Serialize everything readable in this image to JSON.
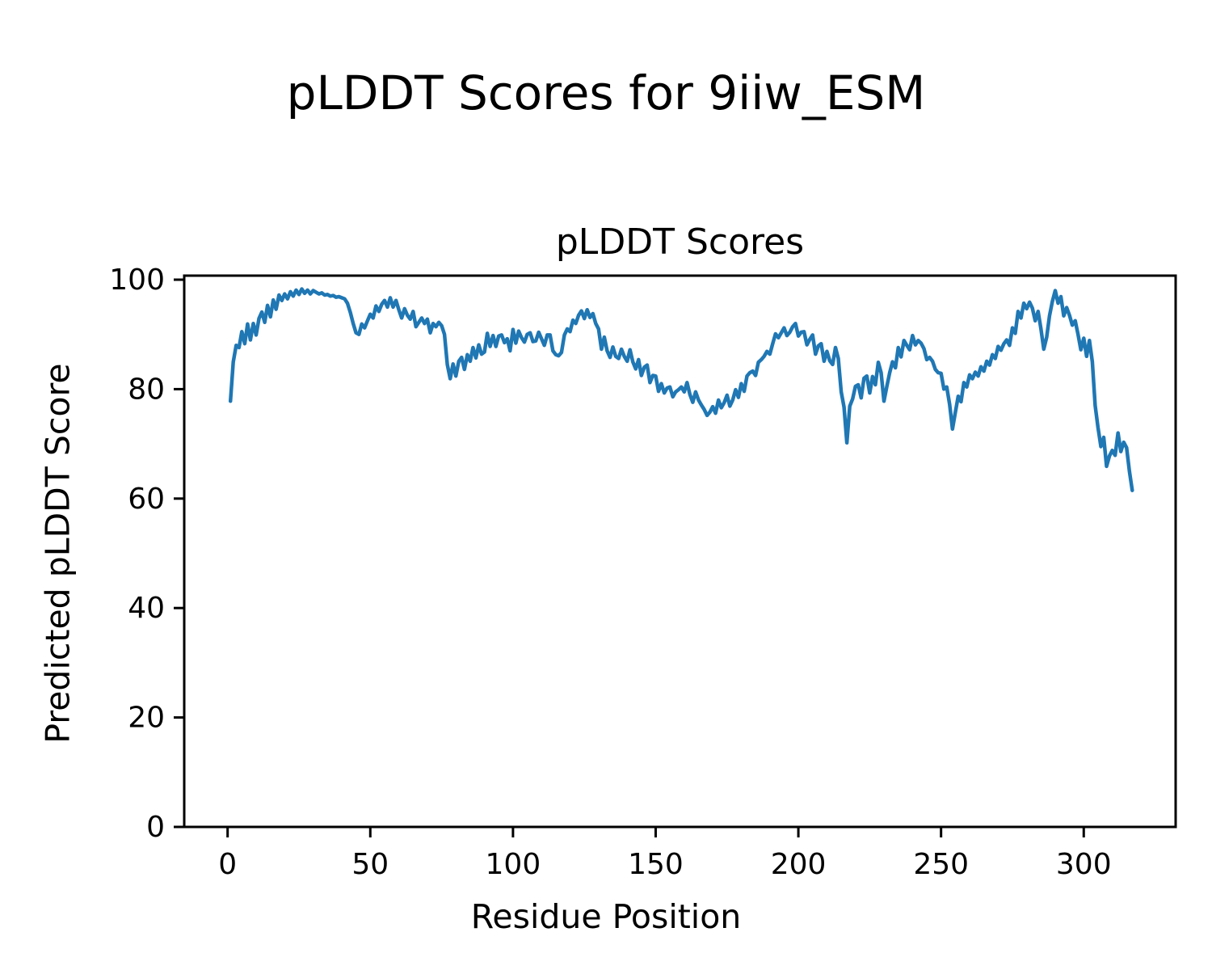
{
  "figure": {
    "suptitle": "pLDDT Scores for 9iiw_ESM",
    "axes_title": "pLDDT Scores",
    "xlabel": "Residue Position",
    "ylabel": "Predicted pLDDT Score"
  },
  "chart_data": {
    "type": "line",
    "title": "pLDDT Scores",
    "suptitle": "pLDDT Scores for 9iiw_ESM",
    "xlabel": "Residue Position",
    "ylabel": "Predicted pLDDT Score",
    "series_name": "pLDDT per residue",
    "line_color": "#1f77b4",
    "axis_color": "#000000",
    "grid": false,
    "legend": false,
    "xlim": [
      -15.2,
      332.2
    ],
    "ylim": [
      0,
      100.74
    ],
    "xticks": [
      0,
      50,
      100,
      150,
      200,
      250,
      300
    ],
    "yticks": [
      0,
      20,
      40,
      60,
      80,
      100
    ],
    "x_start": 1,
    "x_step": 1,
    "y": [
      77.8,
      85.0,
      88.0,
      87.6,
      90.5,
      88.3,
      91.9,
      89.0,
      92.0,
      89.9,
      92.9,
      94.1,
      92.2,
      95.3,
      93.2,
      96.3,
      94.6,
      97.2,
      96.2,
      97.4,
      96.5,
      97.8,
      97.0,
      98.1,
      97.3,
      98.3,
      97.5,
      98.1,
      97.4,
      98.0,
      97.7,
      97.4,
      97.6,
      97.2,
      97.3,
      97.0,
      97.1,
      96.8,
      96.9,
      96.7,
      96.5,
      95.7,
      94.0,
      92.0,
      90.3,
      90.0,
      91.9,
      91.2,
      92.5,
      93.7,
      93.0,
      95.2,
      94.2,
      95.5,
      96.2,
      95.0,
      96.7,
      95.0,
      96.2,
      94.5,
      93.0,
      94.7,
      93.5,
      92.8,
      94.2,
      91.4,
      92.2,
      93.0,
      92.0,
      92.8,
      90.3,
      92.0,
      91.4,
      92.2,
      91.6,
      90.0,
      84.5,
      81.9,
      84.6,
      82.4,
      85.1,
      85.8,
      83.6,
      86.3,
      85.1,
      87.6,
      85.7,
      88.1,
      86.4,
      86.8,
      90.2,
      87.8,
      89.8,
      87.8,
      89.7,
      89.9,
      88.5,
      89.2,
      87.0,
      90.9,
      88.4,
      90.6,
      89.4,
      88.6,
      90.0,
      90.3,
      88.7,
      88.8,
      90.4,
      89.2,
      88.0,
      89.9,
      89.9,
      87.0,
      86.3,
      86.1,
      86.7,
      89.9,
      91.0,
      90.5,
      92.6,
      92.0,
      93.5,
      94.3,
      92.9,
      94.5,
      93.1,
      93.8,
      92.0,
      91.0,
      87.3,
      89.5,
      87.0,
      85.8,
      87.7,
      86.0,
      85.6,
      87.3,
      86.0,
      85.1,
      87.2,
      85.0,
      83.7,
      85.4,
      82.5,
      84.0,
      84.4,
      81.2,
      82.5,
      82.4,
      79.6,
      81.0,
      79.3,
      80.2,
      80.4,
      78.6,
      79.5,
      79.9,
      80.4,
      79.5,
      81.2,
      79.0,
      77.6,
      79.5,
      78.0,
      77.1,
      76.3,
      75.2,
      75.8,
      76.8,
      75.6,
      78.0,
      76.6,
      77.5,
      78.9,
      76.9,
      78.0,
      79.9,
      78.5,
      81.0,
      79.6,
      82.4,
      83.0,
      83.3,
      82.5,
      84.9,
      85.4,
      86.0,
      86.9,
      86.4,
      88.3,
      90.1,
      89.4,
      90.3,
      91.2,
      89.8,
      90.4,
      91.4,
      92.0,
      89.7,
      90.4,
      90.5,
      88.1,
      89.1,
      89.9,
      86.4,
      87.9,
      88.3,
      85.1,
      86.9,
      85.2,
      84.5,
      87.6,
      85.6,
      79.5,
      76.7,
      70.2,
      76.9,
      78.2,
      80.5,
      80.8,
      78.4,
      82.0,
      82.4,
      79.3,
      82.3,
      80.8,
      84.9,
      83.0,
      77.8,
      80.5,
      83.0,
      85.0,
      83.9,
      87.6,
      85.9,
      88.9,
      88.0,
      87.2,
      89.8,
      88.1,
      88.9,
      88.4,
      87.4,
      85.4,
      85.8,
      85.1,
      83.6,
      83.0,
      82.9,
      80.0,
      80.4,
      77.2,
      72.7,
      75.7,
      78.7,
      77.7,
      81.2,
      80.4,
      82.6,
      81.9,
      83.1,
      82.4,
      84.1,
      83.3,
      85.1,
      84.4,
      86.3,
      85.6,
      87.8,
      87.1,
      88.3,
      89.0,
      88.0,
      91.2,
      90.2,
      94.2,
      93.0,
      95.7,
      94.7,
      95.9,
      94.8,
      92.5,
      94.2,
      91.0,
      87.3,
      89.5,
      93.4,
      96.0,
      98.0,
      95.7,
      96.9,
      93.4,
      94.9,
      93.5,
      91.7,
      92.5,
      90.0,
      87.2,
      89.3,
      86.0,
      88.9,
      85.0,
      77.0,
      73.0,
      69.5,
      71.2,
      65.9,
      67.8,
      68.8,
      67.9,
      72.0,
      68.6,
      70.3,
      69.3,
      65.0,
      61.5
    ]
  }
}
